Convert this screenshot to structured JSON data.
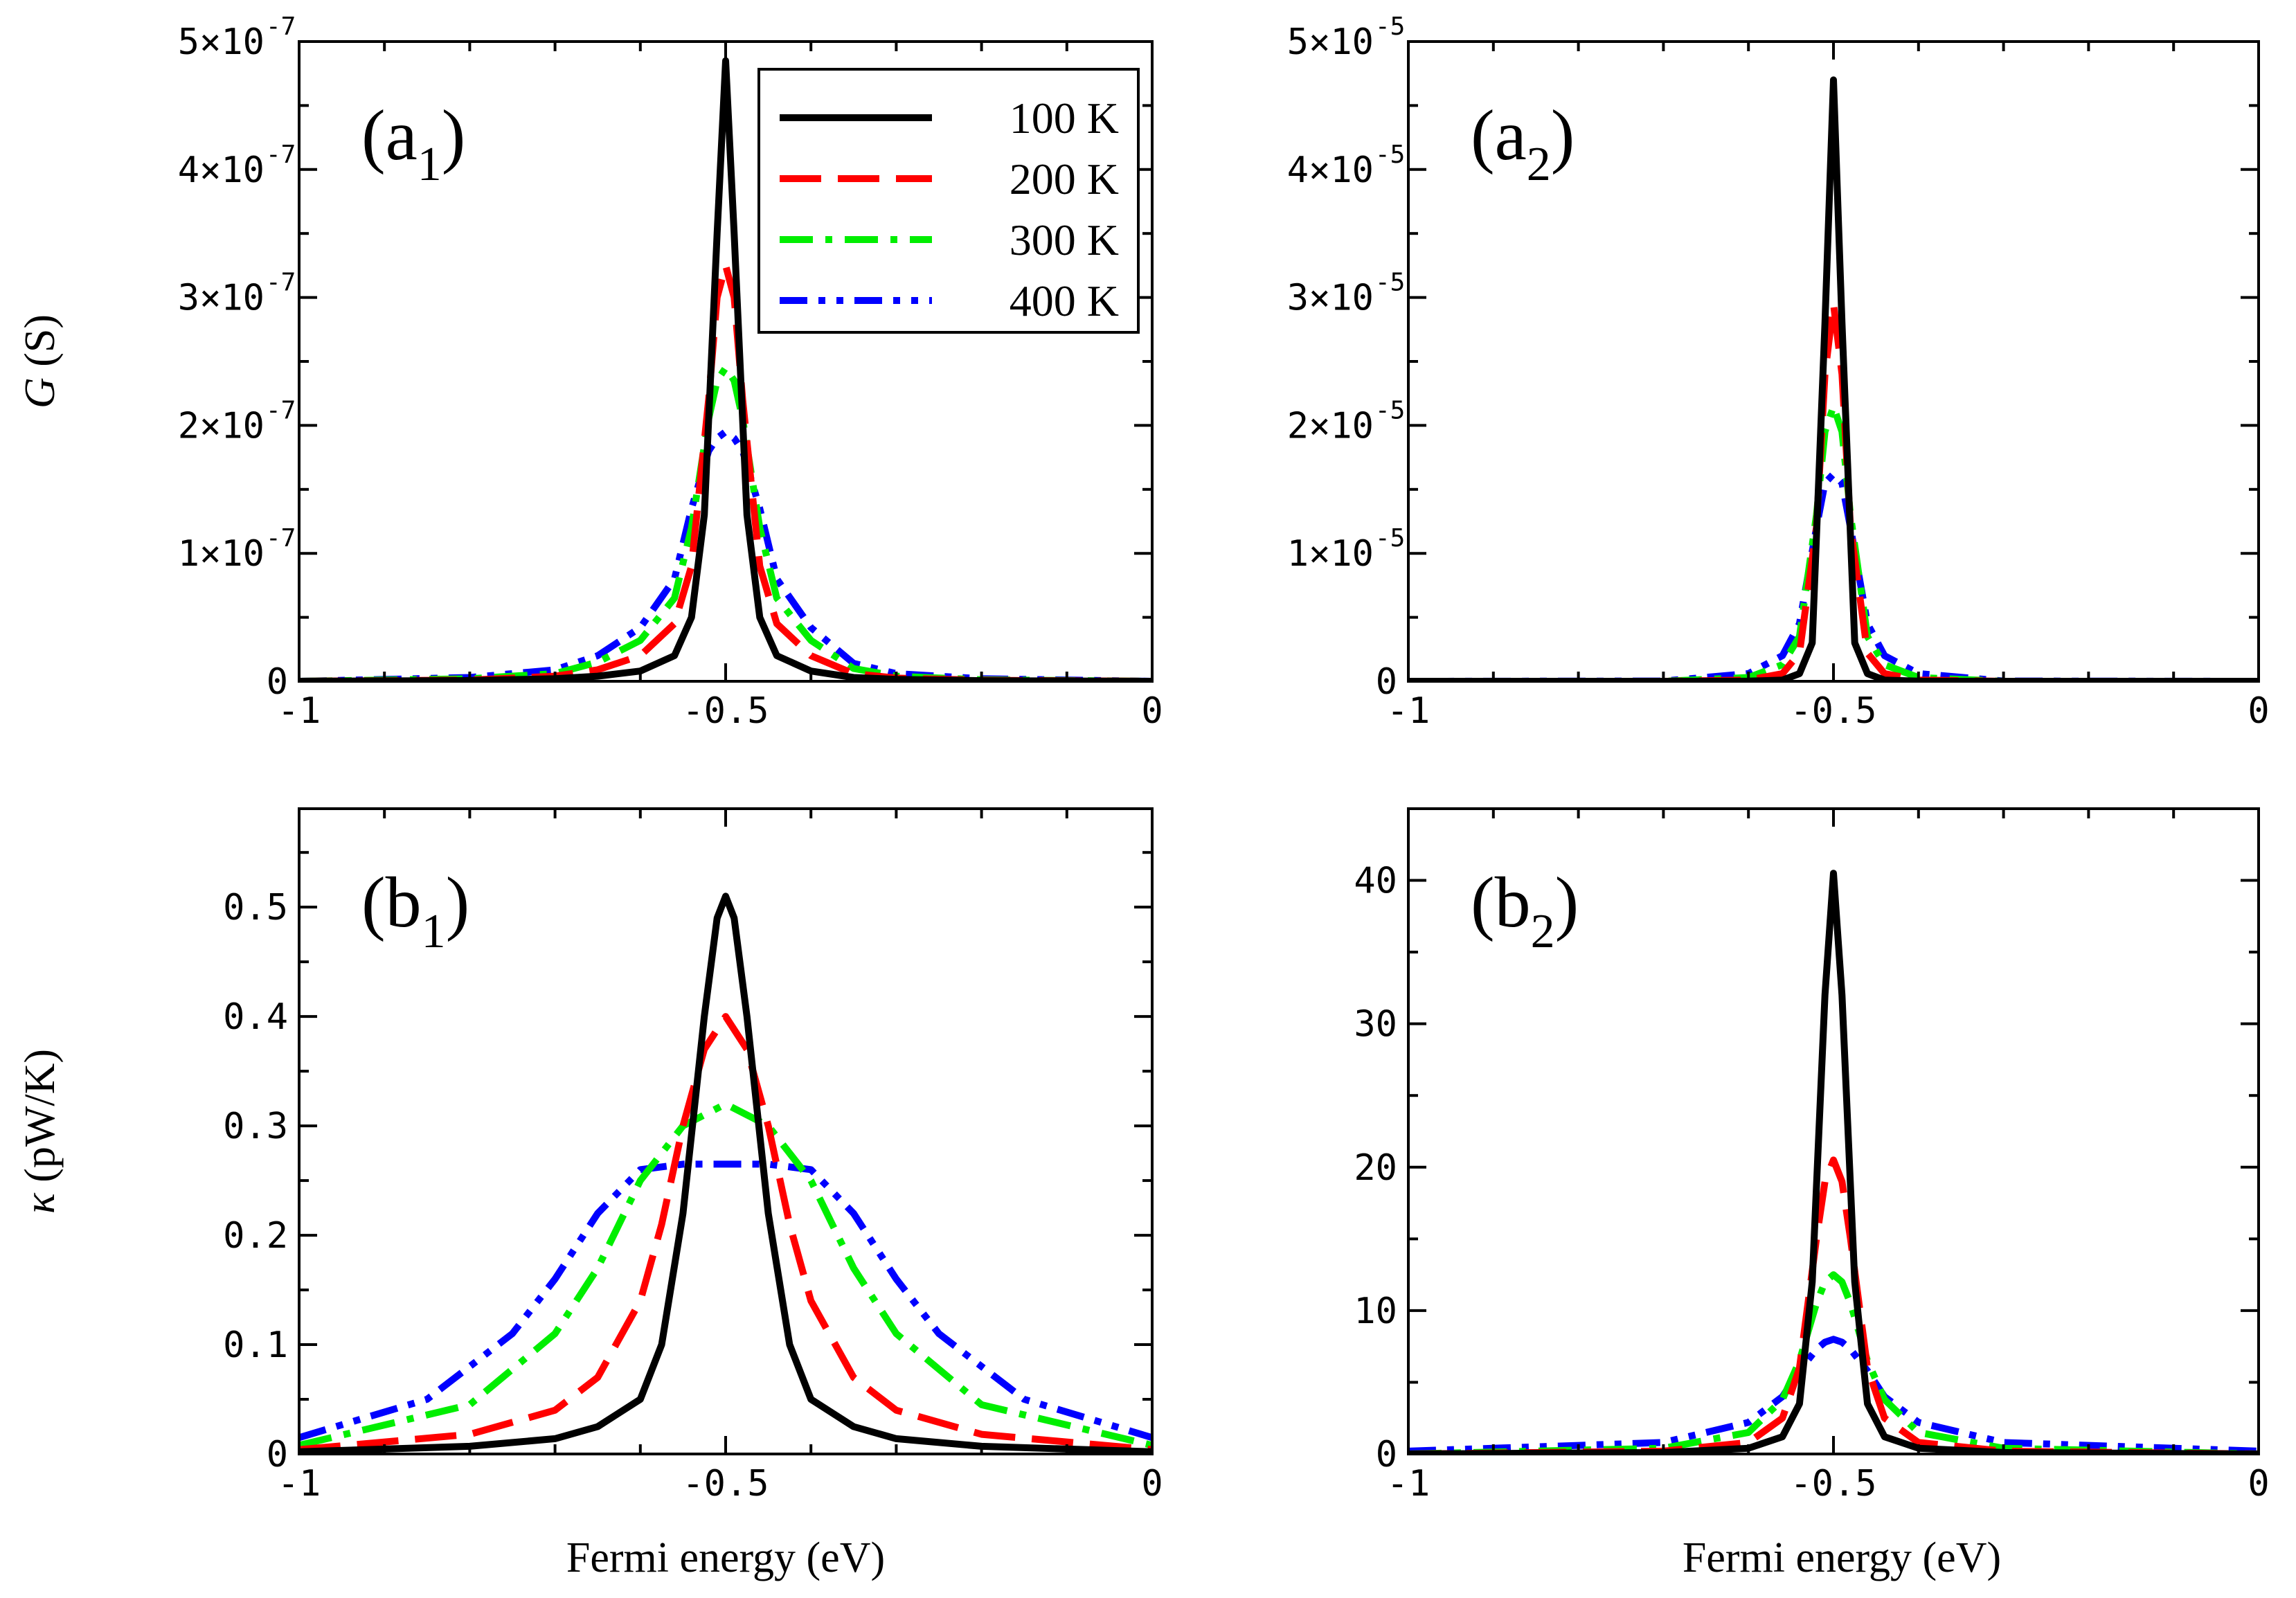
{
  "colors": {
    "100 K": "#000000",
    "200 K": "#ff0000",
    "300 K": "#00ee00",
    "400 K": "#0000ff"
  },
  "legend": {
    "entries": [
      {
        "label": "100 K",
        "dash": "solid"
      },
      {
        "label": "200 K",
        "dash": "dash"
      },
      {
        "label": "300 K",
        "dash": "dashdot"
      },
      {
        "label": "400 K",
        "dash": "dashdotdot"
      }
    ]
  },
  "shared_xlabel": "Fermi energy (eV)",
  "chart_data": [
    {
      "id": "a1",
      "type": "line",
      "panel_label": "a",
      "panel_sub": "1",
      "ylabel": "G (S)",
      "xlim": [
        -1,
        0
      ],
      "ylim": [
        0,
        5e-07
      ],
      "xticks": [
        {
          "v": -1,
          "label": "-1"
        },
        {
          "v": -0.5,
          "label": "-0.5"
        },
        {
          "v": 0,
          "label": "0"
        }
      ],
      "yticks": [
        {
          "v": 0,
          "mant": "0",
          "exp": ""
        },
        {
          "v": 1e-07,
          "mant": "1×10",
          "exp": "-7"
        },
        {
          "v": 2e-07,
          "mant": "2×10",
          "exp": "-7"
        },
        {
          "v": 3e-07,
          "mant": "3×10",
          "exp": "-7"
        },
        {
          "v": 4e-07,
          "mant": "4×10",
          "exp": "-7"
        },
        {
          "v": 5e-07,
          "mant": "5×10",
          "exp": "-7"
        }
      ],
      "show_legend": true,
      "series": [
        {
          "name": "100 K",
          "x": [
            -1.0,
            -0.8,
            -0.7,
            -0.65,
            -0.6,
            -0.56,
            -0.54,
            -0.525,
            -0.51,
            -0.5,
            -0.49,
            -0.475,
            -0.46,
            -0.44,
            -0.4,
            -0.35,
            -0.3,
            -0.2,
            0.0
          ],
          "values": [
            0,
            6e-10,
            2e-09,
            4e-09,
            8e-09,
            2e-08,
            5e-08,
            1.3e-07,
            3.5e-07,
            4.85e-07,
            3.5e-07,
            1.3e-07,
            5e-08,
            2e-08,
            8e-09,
            3e-09,
            1.5e-09,
            5e-10,
            0
          ]
        },
        {
          "name": "200 K",
          "x": [
            -1.0,
            -0.8,
            -0.7,
            -0.65,
            -0.6,
            -0.56,
            -0.54,
            -0.52,
            -0.51,
            -0.5,
            -0.49,
            -0.48,
            -0.46,
            -0.44,
            -0.4,
            -0.35,
            -0.3,
            -0.2,
            0.0
          ],
          "values": [
            0,
            1e-09,
            4e-09,
            9e-09,
            2e-08,
            4.5e-08,
            9e-08,
            2.2e-07,
            3e-07,
            3.25e-07,
            3e-07,
            2.2e-07,
            9e-08,
            4.5e-08,
            2e-08,
            6e-09,
            2.5e-09,
            8e-10,
            0
          ]
        },
        {
          "name": "300 K",
          "x": [
            -1.0,
            -0.8,
            -0.7,
            -0.65,
            -0.6,
            -0.56,
            -0.54,
            -0.52,
            -0.51,
            -0.5,
            -0.49,
            -0.48,
            -0.46,
            -0.44,
            -0.4,
            -0.35,
            -0.3,
            -0.2,
            0.0
          ],
          "values": [
            0,
            2e-09,
            6e-09,
            1.5e-08,
            3.2e-08,
            6.5e-08,
            1.2e-07,
            2.05e-07,
            2.35e-07,
            2.45e-07,
            2.35e-07,
            2.05e-07,
            1.2e-07,
            6.5e-08,
            3.2e-08,
            1e-08,
            4e-09,
            1.2e-09,
            0
          ]
        },
        {
          "name": "400 K",
          "x": [
            -1.0,
            -0.8,
            -0.7,
            -0.65,
            -0.6,
            -0.56,
            -0.54,
            -0.52,
            -0.51,
            -0.5,
            -0.49,
            -0.48,
            -0.46,
            -0.44,
            -0.4,
            -0.35,
            -0.3,
            -0.2,
            0.0
          ],
          "values": [
            0,
            3e-09,
            9e-09,
            2e-08,
            4.2e-08,
            8e-08,
            1.35e-07,
            1.8e-07,
            1.9e-07,
            1.95e-07,
            1.9e-07,
            1.8e-07,
            1.35e-07,
            8e-08,
            4.2e-08,
            1.4e-08,
            6e-09,
            2e-09,
            0
          ]
        }
      ]
    },
    {
      "id": "a2",
      "type": "line",
      "panel_label": "a",
      "panel_sub": "2",
      "ylabel": "",
      "xlim": [
        -1,
        0
      ],
      "ylim": [
        0,
        5e-05
      ],
      "xticks": [
        {
          "v": -1,
          "label": "-1"
        },
        {
          "v": -0.5,
          "label": "-0.5"
        },
        {
          "v": 0,
          "label": "0"
        }
      ],
      "yticks": [
        {
          "v": 0,
          "mant": "0",
          "exp": ""
        },
        {
          "v": 1e-05,
          "mant": "1×10",
          "exp": "-5"
        },
        {
          "v": 2e-05,
          "mant": "2×10",
          "exp": "-5"
        },
        {
          "v": 3e-05,
          "mant": "3×10",
          "exp": "-5"
        },
        {
          "v": 4e-05,
          "mant": "4×10",
          "exp": "-5"
        },
        {
          "v": 5e-05,
          "mant": "5×10",
          "exp": "-5"
        }
      ],
      "show_legend": false,
      "series": [
        {
          "name": "100 K",
          "x": [
            -1.0,
            -0.7,
            -0.6,
            -0.56,
            -0.54,
            -0.525,
            -0.51,
            -0.5,
            -0.49,
            -0.475,
            -0.46,
            -0.44,
            -0.4,
            -0.3,
            0.0
          ],
          "values": [
            0,
            0,
            1e-08,
            1e-07,
            6e-07,
            3e-06,
            2.8e-05,
            4.7e-05,
            2.8e-05,
            3e-06,
            6e-07,
            1e-07,
            1e-08,
            0,
            0
          ]
        },
        {
          "name": "200 K",
          "x": [
            -1.0,
            -0.7,
            -0.6,
            -0.56,
            -0.54,
            -0.52,
            -0.51,
            -0.5,
            -0.49,
            -0.48,
            -0.46,
            -0.44,
            -0.4,
            -0.3,
            0.0
          ],
          "values": [
            0,
            0,
            1e-07,
            6e-07,
            2.2e-06,
            1.2e-05,
            2.4e-05,
            2.95e-05,
            2.4e-05,
            1.2e-05,
            2.2e-06,
            6e-07,
            1e-07,
            0,
            0
          ]
        },
        {
          "name": "300 K",
          "x": [
            -1.0,
            -0.7,
            -0.6,
            -0.56,
            -0.54,
            -0.52,
            -0.51,
            -0.5,
            -0.49,
            -0.48,
            -0.46,
            -0.44,
            -0.4,
            -0.3,
            0.0
          ],
          "values": [
            0,
            0,
            3e-07,
            1.3e-06,
            3.5e-06,
            1.3e-05,
            1.95e-05,
            2.15e-05,
            1.95e-05,
            1.3e-05,
            3.5e-06,
            1.3e-06,
            3e-07,
            0,
            0
          ]
        },
        {
          "name": "400 K",
          "x": [
            -1.0,
            -0.7,
            -0.6,
            -0.56,
            -0.54,
            -0.52,
            -0.51,
            -0.5,
            -0.49,
            -0.48,
            -0.46,
            -0.44,
            -0.4,
            -0.3,
            0.0
          ],
          "values": [
            0,
            2e-08,
            6e-07,
            2e-06,
            4.5e-06,
            1.2e-05,
            1.55e-05,
            1.62e-05,
            1.55e-05,
            1.2e-05,
            4.5e-06,
            2e-06,
            6e-07,
            2e-08,
            0
          ]
        }
      ]
    },
    {
      "id": "b1",
      "type": "line",
      "panel_label": "b",
      "panel_sub": "1",
      "ylabel": "κ (pW/K)",
      "xlim": [
        -1,
        0
      ],
      "ylim": [
        0,
        0.59
      ],
      "xticks": [
        {
          "v": -1,
          "label": "-1"
        },
        {
          "v": -0.5,
          "label": "-0.5"
        },
        {
          "v": 0,
          "label": "0"
        }
      ],
      "yticks": [
        {
          "v": 0,
          "mant": "0",
          "exp": ""
        },
        {
          "v": 0.1,
          "mant": "0.1",
          "exp": ""
        },
        {
          "v": 0.2,
          "mant": "0.2",
          "exp": ""
        },
        {
          "v": 0.3,
          "mant": "0.3",
          "exp": ""
        },
        {
          "v": 0.4,
          "mant": "0.4",
          "exp": ""
        },
        {
          "v": 0.5,
          "mant": "0.5",
          "exp": ""
        }
      ],
      "show_legend": false,
      "series": [
        {
          "name": "100 K",
          "x": [
            -1.0,
            -0.8,
            -0.7,
            -0.65,
            -0.6,
            -0.575,
            -0.55,
            -0.525,
            -0.51,
            -0.5,
            -0.49,
            -0.475,
            -0.45,
            -0.425,
            -0.4,
            -0.35,
            -0.3,
            -0.2,
            0.0
          ],
          "values": [
            0.002,
            0.007,
            0.014,
            0.025,
            0.05,
            0.1,
            0.22,
            0.4,
            0.49,
            0.51,
            0.49,
            0.4,
            0.22,
            0.1,
            0.05,
            0.025,
            0.014,
            0.007,
            0.002
          ]
        },
        {
          "name": "200 K",
          "x": [
            -1.0,
            -0.8,
            -0.7,
            -0.65,
            -0.6,
            -0.575,
            -0.55,
            -0.525,
            -0.5,
            -0.475,
            -0.45,
            -0.425,
            -0.4,
            -0.35,
            -0.3,
            -0.2,
            0.0
          ],
          "values": [
            0.004,
            0.018,
            0.04,
            0.07,
            0.14,
            0.21,
            0.3,
            0.37,
            0.4,
            0.37,
            0.3,
            0.21,
            0.14,
            0.07,
            0.04,
            0.018,
            0.004
          ]
        },
        {
          "name": "300 K",
          "x": [
            -1.0,
            -0.8,
            -0.7,
            -0.65,
            -0.6,
            -0.55,
            -0.5,
            -0.45,
            -0.4,
            -0.35,
            -0.3,
            -0.2,
            0.0
          ],
          "values": [
            0.008,
            0.045,
            0.11,
            0.17,
            0.25,
            0.3,
            0.32,
            0.3,
            0.25,
            0.17,
            0.11,
            0.045,
            0.008
          ]
        },
        {
          "name": "400 K",
          "x": [
            -1.0,
            -0.85,
            -0.75,
            -0.7,
            -0.65,
            -0.6,
            -0.55,
            -0.5,
            -0.45,
            -0.4,
            -0.35,
            -0.3,
            -0.25,
            -0.15,
            0.0
          ],
          "values": [
            0.015,
            0.05,
            0.11,
            0.16,
            0.22,
            0.26,
            0.265,
            0.265,
            0.265,
            0.26,
            0.22,
            0.16,
            0.11,
            0.05,
            0.015
          ]
        }
      ]
    },
    {
      "id": "b2",
      "type": "line",
      "panel_label": "b",
      "panel_sub": "2",
      "ylabel": "",
      "xlim": [
        -1,
        0
      ],
      "ylim": [
        0,
        45
      ],
      "xticks": [
        {
          "v": -1,
          "label": "-1"
        },
        {
          "v": -0.5,
          "label": "-0.5"
        },
        {
          "v": 0,
          "label": "0"
        }
      ],
      "yticks": [
        {
          "v": 0,
          "mant": "0",
          "exp": ""
        },
        {
          "v": 10,
          "mant": "10",
          "exp": ""
        },
        {
          "v": 20,
          "mant": "20",
          "exp": ""
        },
        {
          "v": 30,
          "mant": "30",
          "exp": ""
        },
        {
          "v": 40,
          "mant": "40",
          "exp": ""
        }
      ],
      "show_legend": false,
      "series": [
        {
          "name": "100 K",
          "x": [
            -1.0,
            -0.7,
            -0.6,
            -0.56,
            -0.54,
            -0.525,
            -0.51,
            -0.5,
            -0.49,
            -0.475,
            -0.46,
            -0.44,
            -0.4,
            -0.3,
            0.0
          ],
          "values": [
            0,
            0.1,
            0.4,
            1.2,
            3.5,
            12,
            32,
            40.5,
            32,
            12,
            3.5,
            1.2,
            0.4,
            0.1,
            0
          ]
        },
        {
          "name": "200 K",
          "x": [
            -1.0,
            -0.7,
            -0.6,
            -0.56,
            -0.54,
            -0.52,
            -0.51,
            -0.5,
            -0.49,
            -0.48,
            -0.46,
            -0.44,
            -0.4,
            -0.3,
            0.0
          ],
          "values": [
            0,
            0.2,
            0.8,
            2.5,
            6,
            15,
            19,
            20.5,
            19,
            15,
            6,
            2.5,
            0.8,
            0.2,
            0
          ]
        },
        {
          "name": "300 K",
          "x": [
            -1.0,
            -0.7,
            -0.6,
            -0.56,
            -0.54,
            -0.52,
            -0.51,
            -0.5,
            -0.49,
            -0.48,
            -0.46,
            -0.44,
            -0.4,
            -0.3,
            0.0
          ],
          "values": [
            0,
            0.4,
            1.5,
            3.8,
            6.5,
            10.5,
            12,
            12.5,
            12,
            10.5,
            6.5,
            3.8,
            1.5,
            0.4,
            0
          ]
        },
        {
          "name": "400 K",
          "x": [
            -1.0,
            -0.7,
            -0.6,
            -0.56,
            -0.54,
            -0.52,
            -0.51,
            -0.5,
            -0.49,
            -0.48,
            -0.46,
            -0.44,
            -0.4,
            -0.3,
            0.0
          ],
          "values": [
            0.2,
            0.8,
            2.2,
            4,
            5.8,
            7.3,
            7.8,
            8,
            7.8,
            7.3,
            5.8,
            4,
            2.2,
            0.8,
            0.2
          ]
        }
      ]
    }
  ]
}
